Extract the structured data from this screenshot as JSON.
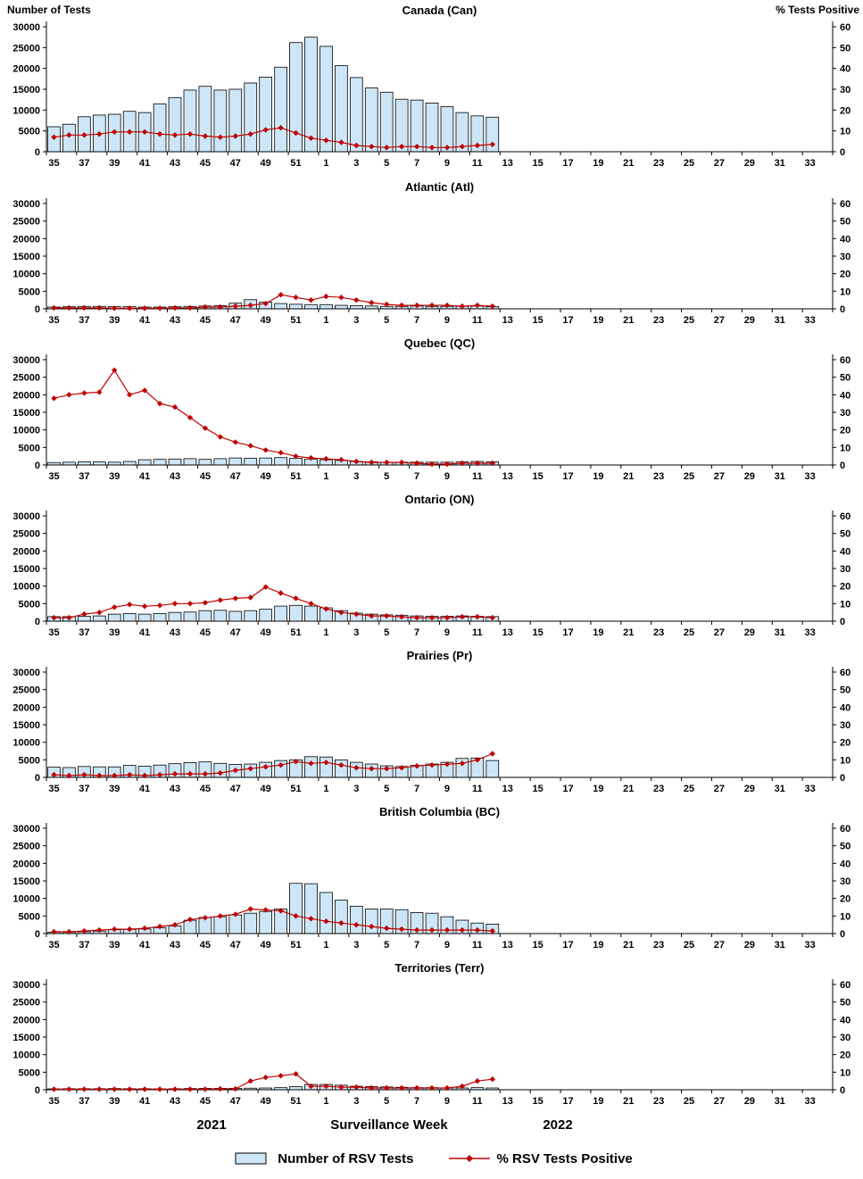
{
  "chart_data": {
    "type": "bar",
    "subtype": "combo-bar-line-small-multiples",
    "left_axis": {
      "label": "Number of Tests",
      "min": 0,
      "max": 30000,
      "tick_step": 5000,
      "tick_labels": [
        "0",
        "5000",
        "10000",
        "15000",
        "20000",
        "25000",
        "30000"
      ]
    },
    "right_axis": {
      "label": "% Tests Positive",
      "min": 0,
      "max": 60,
      "tick_step": 10,
      "tick_labels": [
        "0",
        "10",
        "20",
        "30",
        "40",
        "50",
        "60"
      ]
    },
    "total_slots": 52,
    "x_tick_labels": [
      "35",
      "37",
      "39",
      "41",
      "43",
      "45",
      "47",
      "49",
      "51",
      "1",
      "3",
      "5",
      "7",
      "9",
      "11",
      "13",
      "15",
      "17",
      "19",
      "21",
      "23",
      "25",
      "27",
      "29",
      "31",
      "33"
    ],
    "x_axis_note": {
      "year_left": "2021",
      "center": "Surveillance Week",
      "year_right": "2022"
    },
    "style": {
      "bar_fill": "#CDE6F7",
      "bar_stroke": "#000000",
      "line_color": "#C00000",
      "axis_color": "#000000"
    },
    "legend": [
      {
        "type": "bar",
        "label": "Number of RSV Tests"
      },
      {
        "type": "line",
        "label": "% RSV Tests Positive"
      }
    ],
    "panels": [
      {
        "id": "can",
        "title": "Canada (Can)",
        "bar_values": [
          6000,
          6600,
          8400,
          8800,
          9000,
          9700,
          9400,
          11500,
          13000,
          14800,
          15700,
          14800,
          15000,
          16500,
          17900,
          20300,
          26200,
          27500,
          25300,
          20700,
          17800,
          15300,
          14300,
          12600,
          12400,
          11700,
          10800,
          9400,
          8600,
          8300
        ],
        "line_values": [
          7,
          8,
          8,
          8.5,
          9.5,
          9.5,
          9.5,
          8.5,
          8,
          8.5,
          7.5,
          7,
          7.5,
          8.5,
          10.5,
          11.5,
          9,
          6.5,
          5.5,
          4.5,
          3,
          2.5,
          2,
          2.5,
          2.5,
          2,
          2,
          2.5,
          3,
          3.5
        ]
      },
      {
        "id": "atl",
        "title": "Atlantic (Atl)",
        "bar_values": [
          500,
          600,
          700,
          700,
          600,
          600,
          500,
          500,
          600,
          700,
          800,
          900,
          1600,
          2600,
          1900,
          1500,
          1300,
          1200,
          1200,
          1000,
          900,
          800,
          700,
          700,
          800,
          700,
          700,
          700,
          800,
          600
        ],
        "line_values": [
          0.5,
          0.5,
          0.5,
          0.5,
          0.3,
          0.3,
          0.3,
          0.3,
          0.5,
          0.5,
          1,
          1,
          1.5,
          2,
          3,
          8,
          6.5,
          5,
          7,
          6.5,
          5,
          3.5,
          2.5,
          2,
          2,
          2,
          2,
          1.5,
          2,
          1.5
        ]
      },
      {
        "id": "qc",
        "title": "Quebec (QC)",
        "bar_values": [
          700,
          800,
          900,
          900,
          800,
          1000,
          1500,
          1600,
          1700,
          1800,
          1600,
          1800,
          2000,
          1900,
          2000,
          2100,
          1900,
          1700,
          1500,
          1300,
          1000,
          900,
          800,
          800,
          800,
          800,
          800,
          900,
          1000,
          900
        ],
        "line_values": [
          38,
          40,
          41,
          41.5,
          54,
          40,
          42.5,
          35,
          33,
          27,
          21,
          16,
          13,
          11,
          8.5,
          7,
          5,
          4,
          3.5,
          3,
          2,
          1.5,
          1.5,
          1.5,
          1,
          0.5,
          0.5,
          1,
          1,
          1
        ]
      },
      {
        "id": "on",
        "title": "Ontario (ON)",
        "bar_values": [
          1300,
          1300,
          1400,
          1500,
          2000,
          2200,
          2000,
          2200,
          2500,
          2600,
          3000,
          3100,
          2800,
          3000,
          3400,
          4300,
          4500,
          4300,
          3800,
          3000,
          2300,
          2000,
          1800,
          1700,
          1500,
          1400,
          1400,
          1500,
          1400,
          1300
        ],
        "line_values": [
          2,
          2,
          4,
          5,
          8,
          9.5,
          8.5,
          9,
          10,
          10,
          10.5,
          12,
          13,
          13.5,
          19.5,
          16,
          13,
          10,
          7,
          5,
          4,
          3,
          3,
          2.5,
          2,
          2,
          2,
          2.5,
          2.5,
          2
        ]
      },
      {
        "id": "pr",
        "title": "Prairies (Pr)",
        "bar_values": [
          2900,
          2800,
          3100,
          3000,
          3000,
          3400,
          3200,
          3500,
          3900,
          4200,
          4400,
          4000,
          3700,
          3800,
          4300,
          4800,
          5000,
          5900,
          5800,
          5000,
          4300,
          3800,
          3300,
          3100,
          3400,
          3800,
          4300,
          5400,
          5500,
          4800
        ],
        "line_values": [
          1.5,
          1,
          1.5,
          1,
          1,
          1.5,
          1,
          1.5,
          2,
          2,
          2,
          2.5,
          4,
          5,
          6,
          7,
          9,
          8,
          8.5,
          7,
          5.5,
          5,
          5,
          5.5,
          6.5,
          7,
          7.5,
          8,
          10,
          13.5
        ]
      },
      {
        "id": "bc",
        "title": "British Columbia (BC)",
        "bar_values": [
          400,
          400,
          500,
          700,
          1100,
          1200,
          1300,
          1700,
          2200,
          3800,
          4600,
          4800,
          5300,
          5800,
          6300,
          7000,
          14300,
          14200,
          11700,
          9500,
          7800,
          7000,
          7000,
          6800,
          6000,
          5800,
          4800,
          3800,
          3000,
          2700
        ],
        "line_values": [
          1,
          1,
          1.5,
          2,
          2.5,
          2.5,
          3,
          4,
          5,
          8,
          9,
          10,
          11,
          14,
          13.5,
          13,
          10,
          8.5,
          7,
          6,
          5,
          4,
          3,
          2.5,
          2,
          2,
          2,
          2,
          2,
          1.5
        ]
      },
      {
        "id": "terr",
        "title": "Territories (Terr)",
        "bar_values": [
          250,
          300,
          300,
          300,
          350,
          300,
          300,
          250,
          300,
          350,
          400,
          400,
          400,
          450,
          500,
          600,
          900,
          1500,
          1500,
          1300,
          1000,
          900,
          800,
          700,
          600,
          600,
          500,
          500,
          600,
          500
        ],
        "line_values": [
          0.3,
          0.3,
          0.3,
          0.3,
          0.3,
          0.3,
          0.3,
          0.3,
          0.3,
          0.3,
          0.3,
          0.5,
          0.5,
          5,
          7,
          8,
          9,
          2,
          2,
          1.5,
          1.5,
          1,
          1,
          1,
          1,
          1,
          1,
          2,
          5,
          6
        ]
      }
    ]
  }
}
